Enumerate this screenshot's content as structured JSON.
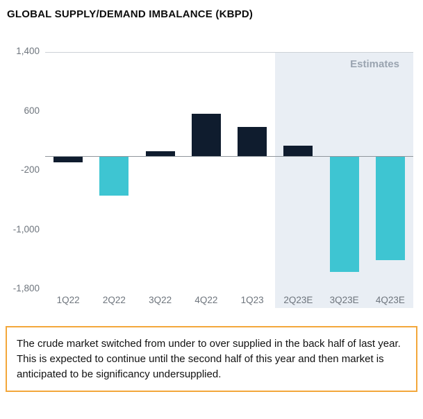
{
  "page": {
    "title": "GLOBAL SUPPLY/DEMAND IMBALANCE (KBPD)"
  },
  "chart_data": {
    "type": "bar",
    "title": "GLOBAL SUPPLY/DEMAND IMBALANCE (KBPD)",
    "xlabel": "",
    "ylabel": "",
    "categories": [
      "1Q22",
      "2Q22",
      "3Q22",
      "4Q22",
      "1Q23",
      "2Q23E",
      "3Q23E",
      "4Q23E"
    ],
    "values": [
      -80,
      -530,
      70,
      580,
      400,
      150,
      -1560,
      -1400
    ],
    "bar_colors": [
      "#0f1c2e",
      "#3ec5d2",
      "#0f1c2e",
      "#0f1c2e",
      "#0f1c2e",
      "#0f1c2e",
      "#3ec5d2",
      "#3ec5d2"
    ],
    "ylim": [
      -1800,
      1400
    ],
    "y_ticks": [
      1400,
      600,
      -200,
      -1000,
      -1800
    ],
    "y_tick_labels": [
      "1,400",
      "600",
      "-200",
      "-1,000",
      "-1,800"
    ],
    "grid": "lines at 1,400 and 0 only",
    "legend": "none",
    "estimates_label": "Estimates",
    "estimates_start_index": 5,
    "colors": {
      "actual_bar": "#0f1c2e",
      "estimate_undersupply_bar": "#3ec5d2",
      "estimates_region_bg": "#e9eef4",
      "axis_label": "#6e757d",
      "note_border": "#f3a73a"
    }
  },
  "note": {
    "text": "The crude market switched from under to over supplied in the back half of last year. This is expected to continue until the second half of this year and then market is anticipated to be significancy undersupplied."
  }
}
